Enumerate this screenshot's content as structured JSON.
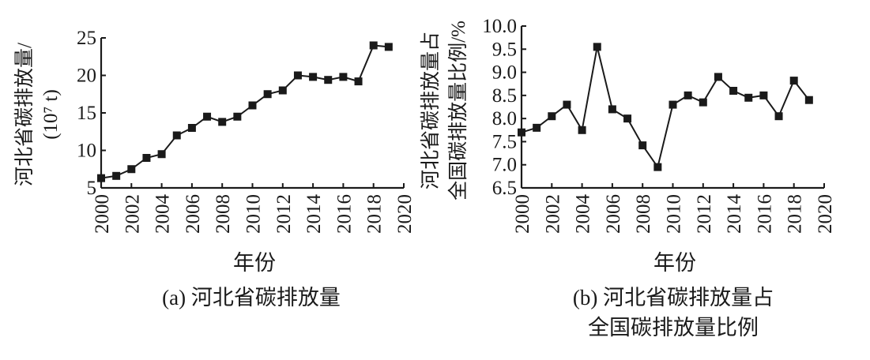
{
  "chart_data": [
    {
      "type": "line",
      "panel_caption": "(a) 河北省碳排放量",
      "xlabel": "年份",
      "ylabel_line1": "河北省碳排放量/",
      "ylabel_line2": "(10⁷ t)",
      "xlim": [
        2000,
        2020
      ],
      "ylim": [
        5,
        25
      ],
      "x_ticks": [
        2000,
        2002,
        2004,
        2006,
        2008,
        2010,
        2012,
        2014,
        2016,
        2018,
        2020
      ],
      "y_ticks": [
        "5",
        "10",
        "15",
        "20",
        "25"
      ],
      "grid": false,
      "marker": "square",
      "series": [
        {
          "x": [
            2000,
            2001,
            2002,
            2003,
            2004,
            2005,
            2006,
            2007,
            2008,
            2009,
            2010,
            2011,
            2012,
            2013,
            2014,
            2015,
            2016,
            2017,
            2018,
            2019
          ],
          "y": [
            6.3,
            6.6,
            7.5,
            9.0,
            9.5,
            12.0,
            13.0,
            14.5,
            13.8,
            14.5,
            16.0,
            17.5,
            18.0,
            20.0,
            19.8,
            19.4,
            19.8,
            19.2,
            24.0,
            23.8
          ]
        }
      ]
    },
    {
      "type": "line",
      "panel_caption_line1": "(b) 河北省碳排放量占",
      "panel_caption_line2": "全国碳排放量比例",
      "xlabel": "年份",
      "ylabel_line1": "河北省碳排放量占",
      "ylabel_line2": "全国碳排放量比例/%",
      "xlim": [
        2000,
        2020
      ],
      "ylim": [
        6.5,
        10.0
      ],
      "x_ticks": [
        2000,
        2002,
        2004,
        2006,
        2008,
        2010,
        2012,
        2014,
        2016,
        2018,
        2020
      ],
      "y_ticks": [
        "6.5",
        "7.0",
        "7.5",
        "8.0",
        "8.5",
        "9.0",
        "9.5",
        "10.0"
      ],
      "grid": false,
      "marker": "square",
      "series": [
        {
          "x": [
            2000,
            2001,
            2002,
            2003,
            2004,
            2005,
            2006,
            2007,
            2008,
            2009,
            2010,
            2011,
            2012,
            2013,
            2014,
            2015,
            2016,
            2017,
            2018,
            2019
          ],
          "y": [
            7.7,
            7.8,
            8.05,
            8.3,
            7.75,
            9.55,
            8.2,
            8.0,
            7.42,
            6.95,
            8.3,
            8.5,
            8.35,
            8.9,
            8.6,
            8.45,
            8.5,
            8.05,
            8.82,
            8.4
          ]
        }
      ]
    }
  ]
}
